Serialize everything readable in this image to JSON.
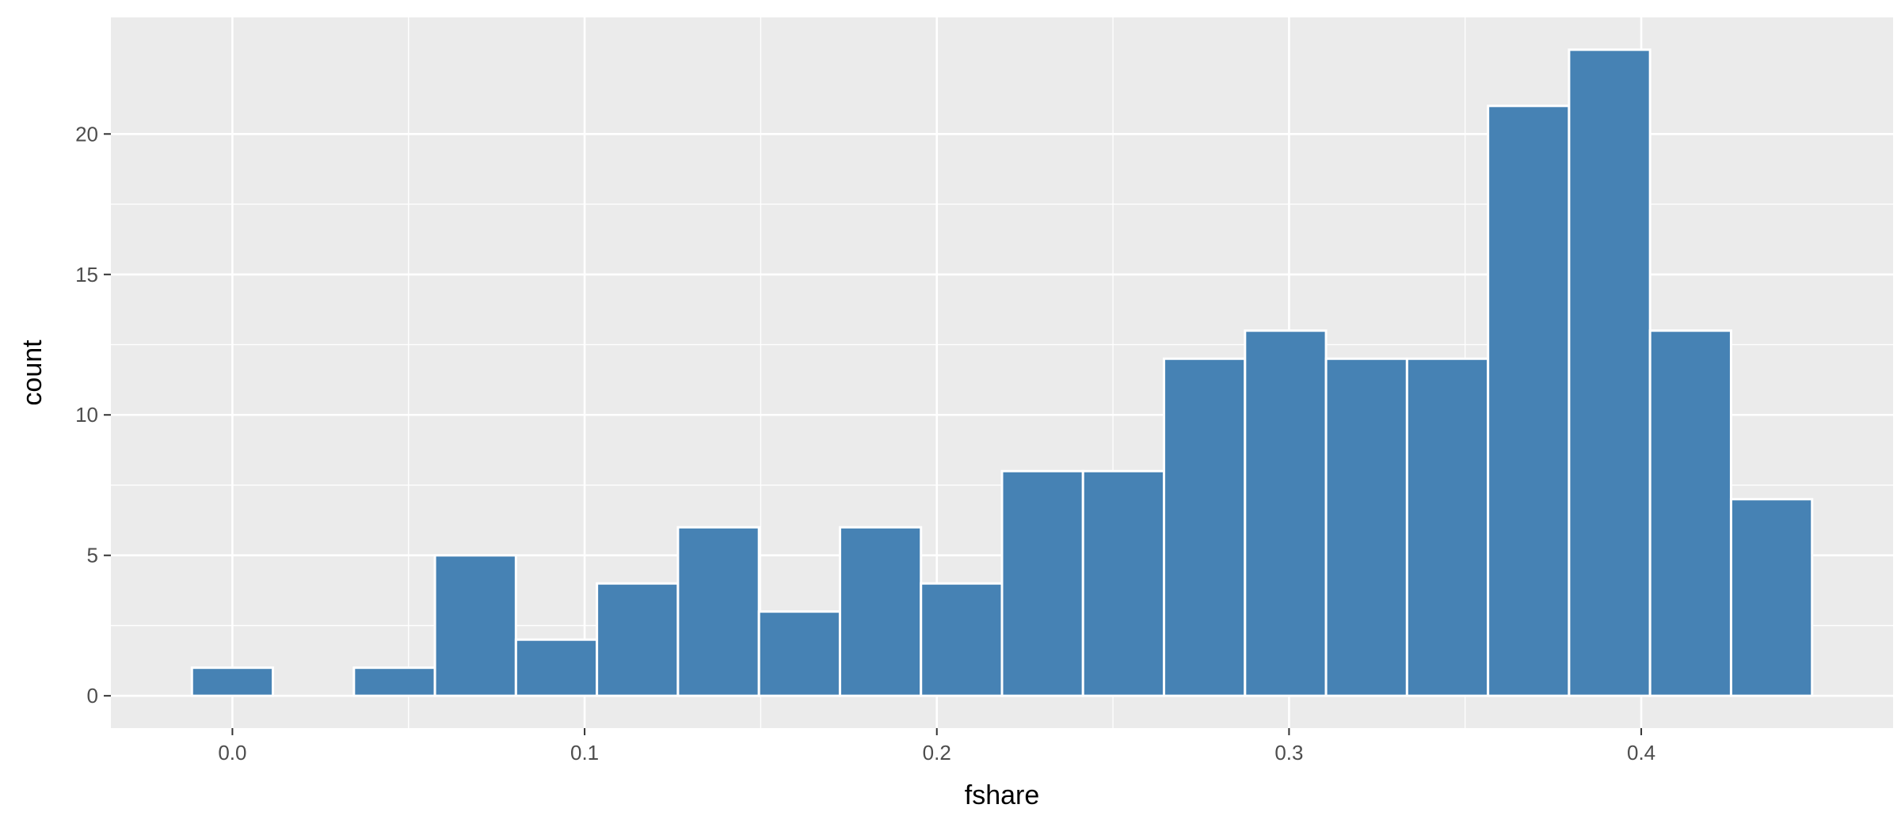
{
  "chart_data": {
    "type": "bar",
    "subtype": "histogram",
    "xlabel": "fshare",
    "ylabel": "count",
    "bins": [
      {
        "x": 0.0,
        "count": 1
      },
      {
        "x": 0.023,
        "count": 0
      },
      {
        "x": 0.046,
        "count": 1
      },
      {
        "x": 0.069,
        "count": 5
      },
      {
        "x": 0.092,
        "count": 2
      },
      {
        "x": 0.115,
        "count": 4
      },
      {
        "x": 0.138,
        "count": 6
      },
      {
        "x": 0.161,
        "count": 3
      },
      {
        "x": 0.184,
        "count": 6
      },
      {
        "x": 0.207,
        "count": 4
      },
      {
        "x": 0.23,
        "count": 8
      },
      {
        "x": 0.253,
        "count": 8
      },
      {
        "x": 0.276,
        "count": 12
      },
      {
        "x": 0.299,
        "count": 13
      },
      {
        "x": 0.322,
        "count": 12
      },
      {
        "x": 0.345,
        "count": 12
      },
      {
        "x": 0.368,
        "count": 21
      },
      {
        "x": 0.391,
        "count": 23
      },
      {
        "x": 0.414,
        "count": 13
      },
      {
        "x": 0.437,
        "count": 7
      }
    ],
    "bin_width": 0.023,
    "xlim": [
      -0.0345,
      0.4715
    ],
    "ylim": [
      -1.15,
      24.15
    ],
    "x_ticks": [
      0.0,
      0.1,
      0.2,
      0.3,
      0.4
    ],
    "x_tick_labels": [
      "0.0",
      "0.1",
      "0.2",
      "0.3",
      "0.4"
    ],
    "y_ticks": [
      0,
      5,
      10,
      15,
      20
    ],
    "y_tick_labels": [
      "0",
      "5",
      "10",
      "15",
      "20"
    ],
    "grid": true,
    "bar_fill": "#4682b4",
    "bar_outline": "#ffffff",
    "panel_background": "#ebebeb",
    "grid_color": "#ffffff"
  }
}
